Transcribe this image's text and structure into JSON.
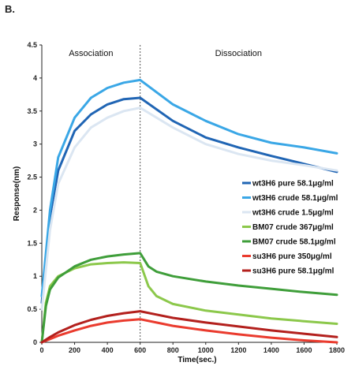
{
  "panel_label": "B.",
  "chart_data": {
    "type": "line",
    "title": "",
    "xlabel": "Time(sec.)",
    "ylabel": "Response(nm)",
    "xlim": [
      0,
      1800
    ],
    "ylim": [
      0,
      4.5
    ],
    "xticks": [
      0,
      200,
      400,
      600,
      800,
      1000,
      1200,
      1400,
      1600,
      1800
    ],
    "yticks": [
      0,
      0.5,
      1,
      1.5,
      2,
      2.5,
      3,
      3.5,
      4,
      4.5
    ],
    "divider_x": 600,
    "annotations": [
      "Association",
      "Dissociation"
    ],
    "legend_position": "right-middle",
    "series": [
      {
        "name": "wt3H6 pure 58.1μg/ml",
        "color": "#2065b4",
        "x": [
          0,
          50,
          100,
          200,
          300,
          400,
          500,
          600,
          800,
          1000,
          1200,
          1400,
          1600,
          1800
        ],
        "y": [
          0.6,
          1.9,
          2.6,
          3.2,
          3.45,
          3.6,
          3.68,
          3.7,
          3.35,
          3.1,
          2.95,
          2.82,
          2.7,
          2.58
        ]
      },
      {
        "name": "wt3H6 crude 58.1μg/ml",
        "color": "#3aa7e6",
        "x": [
          0,
          50,
          100,
          200,
          300,
          400,
          500,
          600,
          800,
          1000,
          1200,
          1400,
          1600,
          1800
        ],
        "y": [
          0.7,
          2.0,
          2.8,
          3.4,
          3.7,
          3.85,
          3.93,
          3.97,
          3.6,
          3.35,
          3.15,
          3.02,
          2.95,
          2.86
        ]
      },
      {
        "name": "wt3H6 crude 1.5μg/ml",
        "color": "#dbe6f2",
        "x": [
          0,
          50,
          100,
          200,
          300,
          400,
          500,
          600,
          800,
          1000,
          1200,
          1400,
          1600,
          1800
        ],
        "y": [
          0.5,
          1.7,
          2.4,
          2.95,
          3.25,
          3.4,
          3.5,
          3.55,
          3.25,
          3.0,
          2.85,
          2.75,
          2.68,
          2.6
        ]
      },
      {
        "name": "BM07 crude 367μg/ml",
        "color": "#8cc84b",
        "x": [
          0,
          25,
          50,
          100,
          200,
          300,
          400,
          500,
          600,
          650,
          700,
          800,
          1000,
          1200,
          1400,
          1600,
          1800
        ],
        "y": [
          0,
          0.6,
          0.85,
          1.0,
          1.12,
          1.18,
          1.2,
          1.21,
          1.2,
          0.85,
          0.7,
          0.58,
          0.48,
          0.42,
          0.36,
          0.32,
          0.28
        ]
      },
      {
        "name": "BM07 crude 58.1μg/ml",
        "color": "#3f9e3a",
        "x": [
          0,
          25,
          50,
          100,
          200,
          300,
          400,
          500,
          600,
          650,
          700,
          800,
          1000,
          1200,
          1400,
          1600,
          1800
        ],
        "y": [
          0,
          0.55,
          0.8,
          0.98,
          1.15,
          1.25,
          1.3,
          1.33,
          1.35,
          1.15,
          1.07,
          1.0,
          0.92,
          0.86,
          0.81,
          0.76,
          0.72
        ]
      },
      {
        "name": "su3H6 pure 350μg/ml",
        "color": "#ea3b2e",
        "x": [
          0,
          50,
          100,
          200,
          300,
          400,
          500,
          600,
          700,
          800,
          1000,
          1200,
          1400,
          1600,
          1800
        ],
        "y": [
          0,
          0.05,
          0.1,
          0.18,
          0.25,
          0.3,
          0.33,
          0.35,
          0.3,
          0.25,
          0.18,
          0.12,
          0.07,
          0.03,
          0.0
        ]
      },
      {
        "name": "su3H6 pure 58.1μg/ml",
        "color": "#b3201d",
        "x": [
          0,
          50,
          100,
          200,
          300,
          400,
          500,
          600,
          700,
          800,
          1000,
          1200,
          1400,
          1600,
          1800
        ],
        "y": [
          0,
          0.08,
          0.15,
          0.26,
          0.34,
          0.4,
          0.44,
          0.47,
          0.42,
          0.37,
          0.3,
          0.24,
          0.18,
          0.13,
          0.08
        ]
      }
    ]
  }
}
